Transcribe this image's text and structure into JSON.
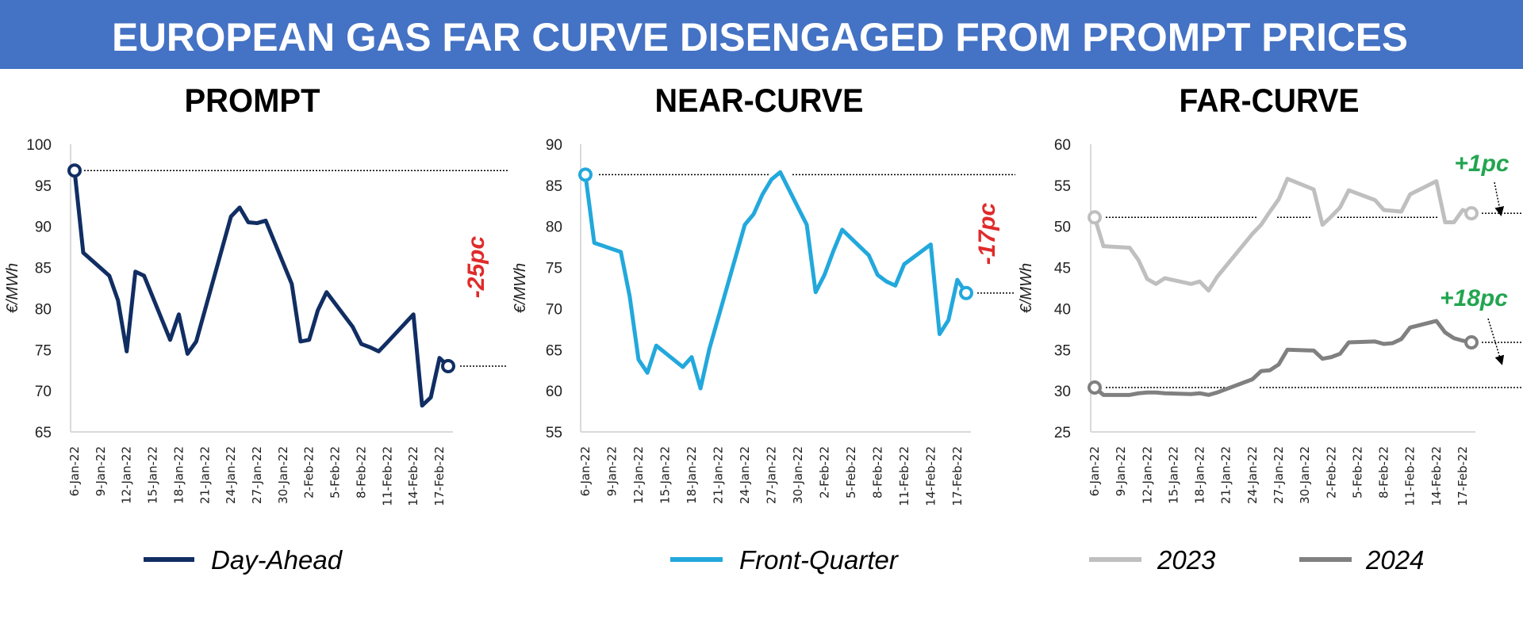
{
  "title": "EUROPEAN GAS FAR CURVE DISENGAGED FROM PROMPT PRICES",
  "colors": {
    "title_bar": "#4472C4",
    "negative": "#E02A2A",
    "positive": "#22A550"
  },
  "chart_data": [
    {
      "type": "line",
      "title": "PROMPT",
      "ylabel": "€/MWh",
      "ylim": [
        65,
        100
      ],
      "yticks": [
        "65",
        "70",
        "75",
        "80",
        "85",
        "90",
        "95",
        "100"
      ],
      "xticks": [
        "6-Jan-22",
        "9-Jan-22",
        "12-Jan-22",
        "15-Jan-22",
        "18-Jan-22",
        "21-Jan-22",
        "24-Jan-22",
        "27-Jan-22",
        "30-Jan-22",
        "2-Feb-22",
        "5-Feb-22",
        "8-Feb-22",
        "11-Feb-22",
        "14-Feb-22",
        "17-Feb-22"
      ],
      "x": [
        "2022-01-06",
        "2022-01-07",
        "2022-01-10",
        "2022-01-11",
        "2022-01-12",
        "2022-01-13",
        "2022-01-14",
        "2022-01-17",
        "2022-01-18",
        "2022-01-19",
        "2022-01-20",
        "2022-01-24",
        "2022-01-25",
        "2022-01-26",
        "2022-01-27",
        "2022-01-28",
        "2022-01-31",
        "2022-02-01",
        "2022-02-02",
        "2022-02-03",
        "2022-02-04",
        "2022-02-07",
        "2022-02-08",
        "2022-02-09",
        "2022-02-10",
        "2022-02-11",
        "2022-02-14",
        "2022-02-15",
        "2022-02-16",
        "2022-02-17",
        "2022-02-18"
      ],
      "series": [
        {
          "name": "Day-Ahead",
          "color": "#112E63",
          "values": [
            96.8,
            86.8,
            84.0,
            81.0,
            74.8,
            84.5,
            84.0,
            76.2,
            79.3,
            74.5,
            76.0,
            91.2,
            92.3,
            90.5,
            90.4,
            90.7,
            83.0,
            76.0,
            76.2,
            79.8,
            82.0,
            77.8,
            75.7,
            75.3,
            74.8,
            75.9,
            79.3,
            68.2,
            69.2,
            74.0,
            73.0
          ],
          "change_label": "-25pc"
        }
      ],
      "legend": "bottom"
    },
    {
      "type": "line",
      "title": "NEAR-CURVE",
      "ylabel": "€/MWh",
      "ylim": [
        55,
        90
      ],
      "yticks": [
        "55",
        "60",
        "65",
        "70",
        "75",
        "80",
        "85",
        "90"
      ],
      "xticks": [
        "6-Jan-22",
        "9-Jan-22",
        "12-Jan-22",
        "15-Jan-22",
        "18-Jan-22",
        "21-Jan-22",
        "24-Jan-22",
        "27-Jan-22",
        "30-Jan-22",
        "2-Feb-22",
        "5-Feb-22",
        "8-Feb-22",
        "11-Feb-22",
        "14-Feb-22",
        "17-Feb-22"
      ],
      "x": [
        "2022-01-06",
        "2022-01-07",
        "2022-01-10",
        "2022-01-11",
        "2022-01-12",
        "2022-01-13",
        "2022-01-14",
        "2022-01-17",
        "2022-01-18",
        "2022-01-19",
        "2022-01-20",
        "2022-01-24",
        "2022-01-25",
        "2022-01-26",
        "2022-01-27",
        "2022-01-28",
        "2022-01-31",
        "2022-02-01",
        "2022-02-02",
        "2022-02-03",
        "2022-02-04",
        "2022-02-07",
        "2022-02-08",
        "2022-02-09",
        "2022-02-10",
        "2022-02-11",
        "2022-02-14",
        "2022-02-15",
        "2022-02-16",
        "2022-02-17",
        "2022-02-18"
      ],
      "series": [
        {
          "name": "Front-Quarter",
          "color": "#22A8DC",
          "values": [
            86.3,
            78.0,
            76.9,
            71.5,
            63.8,
            62.2,
            65.5,
            62.9,
            64.1,
            60.3,
            65.1,
            80.2,
            81.5,
            83.9,
            85.7,
            86.6,
            80.2,
            72.0,
            74.1,
            77.0,
            79.6,
            76.5,
            74.1,
            73.3,
            72.8,
            75.4,
            77.8,
            66.9,
            68.6,
            73.5,
            71.9
          ],
          "change_label": "-17pc"
        }
      ],
      "legend": "bottom"
    },
    {
      "type": "line",
      "title": "FAR-CURVE",
      "ylabel": "€/MWh",
      "ylim": [
        25,
        60
      ],
      "yticks": [
        "25",
        "30",
        "35",
        "40",
        "45",
        "50",
        "55",
        "60"
      ],
      "xticks": [
        "6-Jan-22",
        "9-Jan-22",
        "12-Jan-22",
        "15-Jan-22",
        "18-Jan-22",
        "21-Jan-22",
        "24-Jan-22",
        "27-Jan-22",
        "30-Jan-22",
        "2-Feb-22",
        "5-Feb-22",
        "8-Feb-22",
        "11-Feb-22",
        "14-Feb-22",
        "17-Feb-22"
      ],
      "x": [
        "2022-01-06",
        "2022-01-07",
        "2022-01-10",
        "2022-01-11",
        "2022-01-12",
        "2022-01-13",
        "2022-01-14",
        "2022-01-17",
        "2022-01-18",
        "2022-01-19",
        "2022-01-20",
        "2022-01-24",
        "2022-01-25",
        "2022-01-26",
        "2022-01-27",
        "2022-01-28",
        "2022-01-31",
        "2022-02-01",
        "2022-02-02",
        "2022-02-03",
        "2022-02-04",
        "2022-02-07",
        "2022-02-08",
        "2022-02-09",
        "2022-02-10",
        "2022-02-11",
        "2022-02-14",
        "2022-02-15",
        "2022-02-16",
        "2022-02-17",
        "2022-02-18"
      ],
      "series": [
        {
          "name": "2023",
          "color": "#BFBFBF",
          "values": [
            51.1,
            47.6,
            47.4,
            45.9,
            43.6,
            43.0,
            43.7,
            43.0,
            43.3,
            42.2,
            43.9,
            49.1,
            50.2,
            51.8,
            53.3,
            55.8,
            54.5,
            50.2,
            51.2,
            52.3,
            54.4,
            53.2,
            52.0,
            51.9,
            51.8,
            53.9,
            55.5,
            50.5,
            50.5,
            52.0,
            51.6
          ],
          "change_label": "+1pc"
        },
        {
          "name": "2024",
          "color": "#808080",
          "values": [
            30.4,
            29.5,
            29.5,
            29.7,
            29.8,
            29.8,
            29.7,
            29.6,
            29.7,
            29.5,
            29.8,
            31.4,
            32.4,
            32.5,
            33.2,
            35.0,
            34.9,
            33.9,
            34.1,
            34.5,
            35.9,
            36.0,
            35.7,
            35.8,
            36.3,
            37.7,
            38.5,
            37.1,
            36.4,
            36.1,
            35.9
          ],
          "change_label": "+18pc"
        }
      ],
      "legend": "bottom"
    }
  ]
}
